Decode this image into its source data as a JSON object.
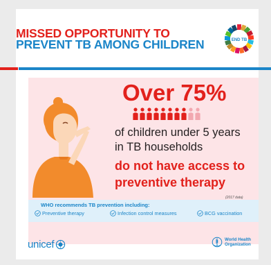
{
  "header": {
    "title_line1": "MISSED OPPORTUNITY TO",
    "title_line2": "PREVENT TB AMONG CHILDREN",
    "badge_text": "END TB"
  },
  "stat": {
    "headline": "Over 75%",
    "line1": "of children under 5 years",
    "line2": "in TB households",
    "emph_line1": "do not have access to",
    "emph_line2": "preventive therapy",
    "note": "(2017 data)",
    "icons_filled": 8,
    "icons_total": 10
  },
  "recommend": {
    "title": "WHO recommends TB prevention including:",
    "items": [
      "Preventive therapy",
      "Infection control measures",
      "BCG vaccination"
    ]
  },
  "footer": {
    "unicef": "unicef",
    "who_line1": "World Health",
    "who_line2": "Organization"
  },
  "colors": {
    "red": "#e2211c",
    "blue": "#1b85c8",
    "pink_bg": "#fde4e7",
    "light_blue_bg": "#dff0fa",
    "child_orange": "#f28b2c",
    "skin": "#fbd7b8"
  }
}
